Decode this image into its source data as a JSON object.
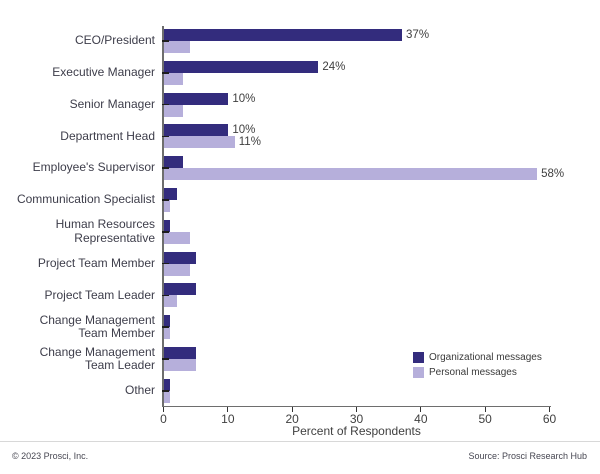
{
  "chart_data": {
    "type": "bar",
    "orientation": "horizontal",
    "title": "",
    "xlabel": "Percent of Respondents",
    "ylabel": "",
    "xlim": [
      0,
      60
    ],
    "x_ticks": [
      0,
      10,
      20,
      30,
      40,
      50,
      60
    ],
    "grid": false,
    "legend_position": "inside-bottom-right",
    "categories": [
      "CEO/President",
      "Executive Manager",
      "Senior Manager",
      "Department Head",
      "Employee's Supervisor",
      "Communication Specialist",
      "Human Resources\nRepresentative",
      "Project Team Member",
      "Project Team Leader",
      "Change Management\nTeam Member",
      "Change Management\nTeam Leader",
      "Other"
    ],
    "series": [
      {
        "name": "Organizational messages",
        "color": "#332c7d",
        "values": [
          37,
          24,
          10,
          10,
          3,
          2,
          1,
          5,
          5,
          1,
          5,
          1
        ],
        "labels": [
          "37%",
          "24%",
          "10%",
          "10%",
          "",
          "",
          "",
          "",
          "",
          "",
          "",
          ""
        ]
      },
      {
        "name": "Personal messages",
        "color": "#b6afdb",
        "values": [
          4,
          3,
          3,
          11,
          58,
          1,
          4,
          4,
          2,
          1,
          5,
          1
        ],
        "labels": [
          "",
          "",
          "",
          "11%",
          "58%",
          "",
          "",
          "",
          "",
          "",
          "",
          ""
        ]
      }
    ]
  },
  "footer": {
    "copyright": "© 2023 Prosci, Inc.",
    "source": "Source: Prosci Research Hub"
  }
}
